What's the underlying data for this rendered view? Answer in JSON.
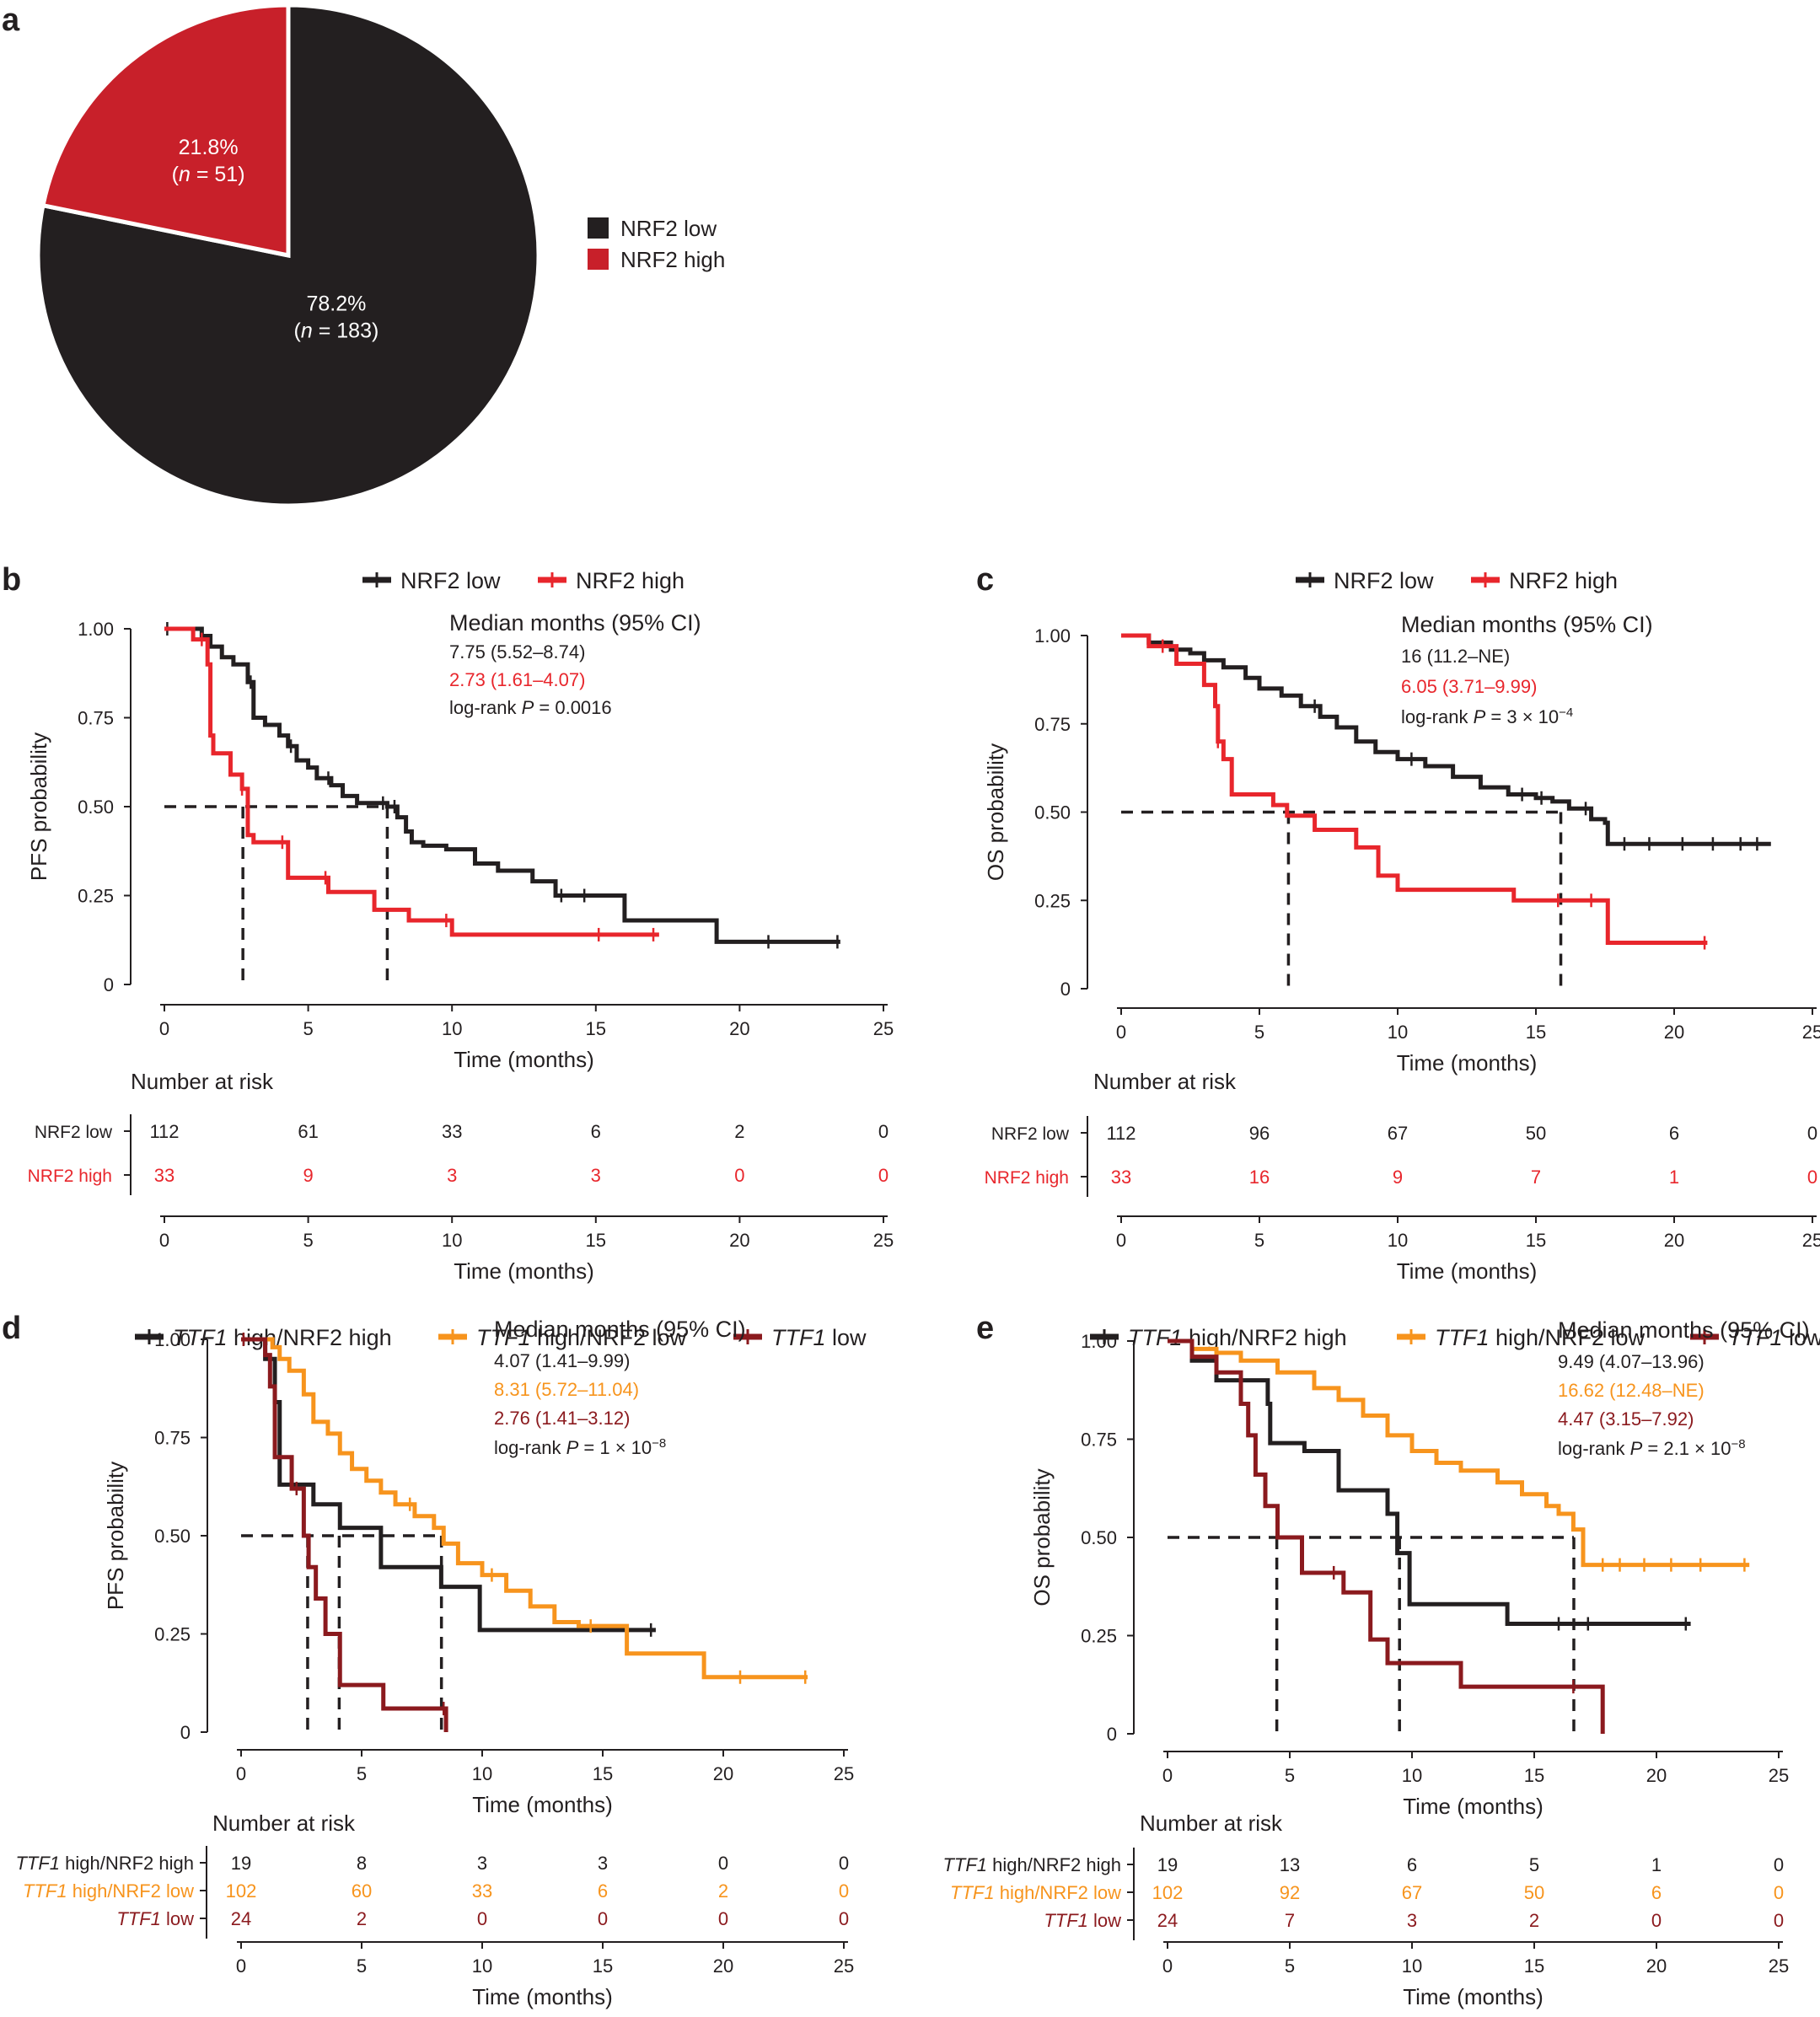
{
  "colors": {
    "black": "#231f20",
    "red_pie": "#c8202a",
    "red": "#e8262c",
    "orange": "#f7941d",
    "darkred": "#8b1a1e"
  },
  "chart_data": [
    {
      "panel": "a",
      "type": "pie",
      "legend_placement": "right",
      "slices": [
        {
          "name": "NRF2 low",
          "percent": 78.2,
          "n": 183,
          "label": "78.2%",
          "n_label": "(n = 183)",
          "color": "#231f20"
        },
        {
          "name": "NRF2 high",
          "percent": 21.8,
          "n": 51,
          "label": "21.8%",
          "n_label": "(n = 51)",
          "color": "#c8202a"
        }
      ]
    },
    {
      "panel": "b",
      "type": "line",
      "ylabel": "PFS probability",
      "xlabel": "Time (months)",
      "xlim": [
        0,
        25
      ],
      "ylim": [
        0,
        1
      ],
      "xticks": [
        "0",
        "5",
        "10",
        "15",
        "20",
        "25"
      ],
      "yticks": [
        "0",
        "0.25",
        "0.50",
        "0.75",
        "1.00"
      ],
      "legend": [
        {
          "name": "NRF2 low",
          "color": "#231f20",
          "italic": false
        },
        {
          "name": "NRF2 high",
          "color": "#e8262c",
          "italic": false
        }
      ],
      "stats": [
        {
          "text": "Median months (95% CI)",
          "color": "#231f20",
          "header": true
        },
        {
          "text": "7.75 (5.52–8.74)",
          "color": "#231f20"
        },
        {
          "text": "2.73 (1.61–4.07)",
          "color": "#e8262c"
        },
        {
          "text": "log-rank P = 0.0016",
          "color": "#231f20"
        }
      ],
      "medians": [
        2.73,
        7.75
      ],
      "series": [
        {
          "name": "NRF2 low",
          "color": "#231f20",
          "x": [
            0,
            1.3,
            1.6,
            2.0,
            2.4,
            2.9,
            3.1,
            3.5,
            4.0,
            4.3,
            4.6,
            5.0,
            5.3,
            5.8,
            6.2,
            6.7,
            7.0,
            7.4,
            7.75,
            8.1,
            8.4,
            8.6,
            9.0,
            9.8,
            10.8,
            11.6,
            12.8,
            13.6,
            16.0,
            19.2,
            23.5
          ],
          "y": [
            1.0,
            0.98,
            0.95,
            0.92,
            0.9,
            0.85,
            0.75,
            0.73,
            0.7,
            0.67,
            0.63,
            0.61,
            0.58,
            0.56,
            0.53,
            0.51,
            0.51,
            0.51,
            0.5,
            0.47,
            0.43,
            0.4,
            0.39,
            0.38,
            0.34,
            0.32,
            0.29,
            0.25,
            0.18,
            0.12,
            0.12
          ],
          "censor_x": [
            0.1,
            3.0,
            4.4,
            5.7,
            7.6,
            8.0,
            13.8,
            14.6,
            21.0,
            23.4
          ]
        },
        {
          "name": "NRF2 high",
          "color": "#e8262c",
          "x": [
            0,
            1.0,
            1.5,
            1.6,
            1.7,
            2.3,
            2.7,
            2.9,
            3.1,
            4.3,
            5.7,
            7.3,
            8.5,
            10.0,
            17.2
          ],
          "y": [
            1.0,
            0.97,
            0.9,
            0.7,
            0.65,
            0.59,
            0.55,
            0.42,
            0.4,
            0.3,
            0.26,
            0.21,
            0.18,
            0.14,
            0.14
          ],
          "censor_x": [
            1.3,
            2.7,
            4.1,
            5.6,
            9.8,
            15.1,
            17.0
          ]
        }
      ],
      "risk_table": {
        "title": "Number at risk",
        "xlabel": "Time (months)",
        "times": [
          "0",
          "5",
          "10",
          "15",
          "20",
          "25"
        ],
        "rows": [
          {
            "name": "NRF2 low",
            "color": "#231f20",
            "values": [
              "112",
              "61",
              "33",
              "6",
              "2",
              "0"
            ]
          },
          {
            "name": "NRF2 high",
            "color": "#e8262c",
            "values": [
              "33",
              "9",
              "3",
              "3",
              "0",
              "0"
            ]
          }
        ]
      }
    },
    {
      "panel": "c",
      "type": "line",
      "ylabel": "OS probability",
      "xlabel": "Time (months)",
      "xlim": [
        0,
        25
      ],
      "ylim": [
        0,
        1
      ],
      "xticks": [
        "0",
        "5",
        "10",
        "15",
        "20",
        "25"
      ],
      "yticks": [
        "0",
        "0.25",
        "0.50",
        "0.75",
        "1.00"
      ],
      "legend": [
        {
          "name": "NRF2 low",
          "color": "#231f20",
          "italic": false
        },
        {
          "name": "NRF2 high",
          "color": "#e8262c",
          "italic": false
        }
      ],
      "stats": [
        {
          "text": "Median months (95% CI)",
          "color": "#231f20",
          "header": true
        },
        {
          "text": "16 (11.2–NE)",
          "color": "#231f20"
        },
        {
          "text": "6.05 (3.71–9.99)",
          "color": "#e8262c"
        },
        {
          "text": "log-rank P = 3 × 10⁻⁴",
          "color": "#231f20"
        }
      ],
      "medians": [
        6.05,
        15.9
      ],
      "series": [
        {
          "name": "NRF2 low",
          "color": "#231f20",
          "x": [
            0,
            1.0,
            1.8,
            2.5,
            3.0,
            3.7,
            4.5,
            5.0,
            5.8,
            6.5,
            7.2,
            7.8,
            8.5,
            9.2,
            10.0,
            11.0,
            12.0,
            13.0,
            14.0,
            15.0,
            15.6,
            16.2,
            17.0,
            17.5,
            17.6,
            23.5
          ],
          "y": [
            1.0,
            0.98,
            0.96,
            0.95,
            0.93,
            0.91,
            0.88,
            0.85,
            0.83,
            0.8,
            0.77,
            0.74,
            0.7,
            0.67,
            0.65,
            0.63,
            0.6,
            0.57,
            0.55,
            0.54,
            0.53,
            0.51,
            0.48,
            0.47,
            0.41,
            0.41
          ],
          "censor_x": [
            7.0,
            10.5,
            14.5,
            15.2,
            16.8,
            18.2,
            19.1,
            20.3,
            21.4,
            22.4,
            23.0
          ]
        },
        {
          "name": "NRF2 high",
          "color": "#e8262c",
          "x": [
            0,
            1.0,
            2.0,
            3.0,
            3.4,
            3.5,
            3.7,
            4.0,
            5.5,
            6.0,
            7.0,
            8.5,
            9.3,
            10.0,
            12.6,
            14.2,
            17.6,
            21.2
          ],
          "y": [
            1.0,
            0.97,
            0.92,
            0.86,
            0.8,
            0.7,
            0.65,
            0.55,
            0.52,
            0.49,
            0.45,
            0.4,
            0.32,
            0.28,
            0.28,
            0.25,
            0.13,
            0.13
          ],
          "censor_x": [
            1.5,
            3.5,
            15.8,
            17.0,
            21.1
          ]
        }
      ],
      "risk_table": {
        "title": "Number at risk",
        "xlabel": "Time (months)",
        "times": [
          "0",
          "5",
          "10",
          "15",
          "20",
          "25"
        ],
        "rows": [
          {
            "name": "NRF2 low",
            "color": "#231f20",
            "values": [
              "112",
              "96",
              "67",
              "50",
              "6",
              "0"
            ]
          },
          {
            "name": "NRF2 high",
            "color": "#e8262c",
            "values": [
              "33",
              "16",
              "9",
              "7",
              "1",
              "0"
            ]
          }
        ]
      }
    },
    {
      "panel": "d",
      "type": "line",
      "ylabel": "PFS probability",
      "xlabel": "Time (months)",
      "xlim": [
        0,
        25
      ],
      "ylim": [
        0,
        1
      ],
      "xticks": [
        "0",
        "5",
        "10",
        "15",
        "20",
        "25"
      ],
      "yticks": [
        "0",
        "0.25",
        "0.50",
        "0.75",
        "1.00"
      ],
      "legend": [
        {
          "name": "TTF1 high/NRF2 high",
          "color": "#231f20",
          "italic": true
        },
        {
          "name": "TTF1 high/NRF2 low",
          "color": "#f7941d",
          "italic": true
        },
        {
          "name": "TTF1 low",
          "color": "#8b1a1e",
          "italic": true
        }
      ],
      "stats": [
        {
          "text": "Median months (95% CI)",
          "color": "#231f20",
          "header": true
        },
        {
          "text": "4.07 (1.41–9.99)",
          "color": "#231f20"
        },
        {
          "text": "8.31 (5.72–11.04)",
          "color": "#f7941d"
        },
        {
          "text": "2.76 (1.41–3.12)",
          "color": "#8b1a1e"
        },
        {
          "text": "log-rank P = 1 × 10⁻⁸",
          "color": "#231f20"
        }
      ],
      "medians": [
        2.76,
        4.07,
        8.31
      ],
      "series": [
        {
          "name": "TTF1 high/NRF2 high",
          "color": "#231f20",
          "x": [
            0,
            1.0,
            1.4,
            1.6,
            3.0,
            4.1,
            5.8,
            8.3,
            9.9,
            17.2
          ],
          "y": [
            1.0,
            0.95,
            0.84,
            0.63,
            0.58,
            0.52,
            0.42,
            0.37,
            0.26,
            0.26
          ],
          "censor_x": [
            17.0
          ]
        },
        {
          "name": "TTF1 high/NRF2 low",
          "color": "#f7941d",
          "x": [
            0,
            1.3,
            1.6,
            2.0,
            2.6,
            3.0,
            3.6,
            4.1,
            4.6,
            5.2,
            5.8,
            6.4,
            7.2,
            8.0,
            8.4,
            9.0,
            10.0,
            11.0,
            12.0,
            13.0,
            14.0,
            16.0,
            19.2,
            23.5
          ],
          "y": [
            1.0,
            0.98,
            0.95,
            0.92,
            0.86,
            0.79,
            0.76,
            0.71,
            0.67,
            0.64,
            0.61,
            0.58,
            0.55,
            0.52,
            0.48,
            0.43,
            0.4,
            0.36,
            0.32,
            0.28,
            0.27,
            0.2,
            0.14,
            0.14
          ],
          "censor_x": [
            7.0,
            10.4,
            14.5,
            20.7,
            23.4
          ]
        },
        {
          "name": "TTF1 low",
          "color": "#8b1a1e",
          "x": [
            0,
            1.0,
            1.2,
            1.4,
            2.1,
            2.6,
            2.8,
            3.1,
            3.5,
            4.1,
            5.9,
            8.5
          ],
          "y": [
            1.0,
            0.96,
            0.88,
            0.7,
            0.62,
            0.5,
            0.42,
            0.34,
            0.25,
            0.12,
            0.06,
            0.0
          ],
          "censor_x": [
            0.1,
            2.3,
            8.4
          ]
        }
      ],
      "risk_table": {
        "title": "Number at risk",
        "xlabel": "Time (months)",
        "times": [
          "0",
          "5",
          "10",
          "15",
          "20",
          "25"
        ],
        "rows": [
          {
            "name": "TTF1 high/NRF2 high",
            "color": "#231f20",
            "values": [
              "19",
              "8",
              "3",
              "3",
              "0",
              "0"
            ]
          },
          {
            "name": "TTF1 high/NRF2 low",
            "color": "#f7941d",
            "values": [
              "102",
              "60",
              "33",
              "6",
              "2",
              "0"
            ]
          },
          {
            "name": "TTF1 low",
            "color": "#8b1a1e",
            "values": [
              "24",
              "2",
              "0",
              "0",
              "0",
              "0"
            ]
          }
        ]
      }
    },
    {
      "panel": "e",
      "type": "line",
      "ylabel": "OS probability",
      "xlabel": "Time (months)",
      "xlim": [
        0,
        25
      ],
      "ylim": [
        0,
        1
      ],
      "xticks": [
        "0",
        "5",
        "10",
        "15",
        "20",
        "25"
      ],
      "yticks": [
        "0",
        "0.25",
        "0.50",
        "0.75",
        "1.00"
      ],
      "legend": [
        {
          "name": "TTF1 high/NRF2 high",
          "color": "#231f20",
          "italic": true
        },
        {
          "name": "TTF1 high/NRF2 low",
          "color": "#f7941d",
          "italic": true
        },
        {
          "name": "TTF1 low",
          "color": "#8b1a1e",
          "italic": true
        }
      ],
      "stats": [
        {
          "text": "Median months (95% CI)",
          "color": "#231f20",
          "header": true
        },
        {
          "text": "9.49 (4.07–13.96)",
          "color": "#231f20"
        },
        {
          "text": "16.62 (12.48–NE)",
          "color": "#f7941d"
        },
        {
          "text": "4.47 (3.15–7.92)",
          "color": "#8b1a1e"
        },
        {
          "text": "log-rank P = 2.1 × 10⁻⁸",
          "color": "#231f20"
        }
      ],
      "medians": [
        4.47,
        9.49,
        16.62
      ],
      "series": [
        {
          "name": "TTF1 high/NRF2 high",
          "color": "#231f20",
          "x": [
            0,
            1.0,
            2.0,
            4.1,
            4.2,
            5.6,
            7.0,
            9.0,
            9.4,
            9.9,
            13.9,
            21.4
          ],
          "y": [
            1.0,
            0.95,
            0.9,
            0.84,
            0.74,
            0.72,
            0.62,
            0.56,
            0.46,
            0.33,
            0.28,
            0.28
          ],
          "censor_x": [
            16.0,
            17.2,
            21.2
          ]
        },
        {
          "name": "TTF1 high/NRF2 low",
          "color": "#f7941d",
          "x": [
            0,
            1.0,
            2.0,
            3.0,
            4.5,
            6.0,
            7.0,
            8.0,
            9.0,
            10.0,
            11.0,
            12.0,
            13.5,
            14.5,
            15.5,
            16.0,
            16.6,
            17.0,
            23.8
          ],
          "y": [
            1.0,
            0.98,
            0.97,
            0.95,
            0.92,
            0.88,
            0.85,
            0.81,
            0.76,
            0.72,
            0.69,
            0.67,
            0.64,
            0.61,
            0.58,
            0.56,
            0.52,
            0.43,
            0.43
          ],
          "censor_x": [
            17.8,
            18.5,
            19.5,
            20.6,
            21.8,
            23.6
          ]
        },
        {
          "name": "TTF1 low",
          "color": "#8b1a1e",
          "x": [
            0,
            1.0,
            2.0,
            3.0,
            3.3,
            3.6,
            4.0,
            4.5,
            5.5,
            7.2,
            8.3,
            9.0,
            10.8,
            12.0,
            17.8,
            17.8
          ],
          "y": [
            1.0,
            0.96,
            0.92,
            0.84,
            0.76,
            0.66,
            0.58,
            0.5,
            0.41,
            0.36,
            0.24,
            0.18,
            0.18,
            0.12,
            0.12,
            0.0
          ],
          "censor_x": [
            6.8,
            16.6
          ]
        }
      ],
      "risk_table": {
        "title": "Number at risk",
        "xlabel": "Time (months)",
        "times": [
          "0",
          "5",
          "10",
          "15",
          "20",
          "25"
        ],
        "rows": [
          {
            "name": "TTF1 high/NRF2 high",
            "color": "#231f20",
            "values": [
              "19",
              "13",
              "6",
              "5",
              "1",
              "0"
            ]
          },
          {
            "name": "TTF1 high/NRF2 low",
            "color": "#f7941d",
            "values": [
              "102",
              "92",
              "67",
              "50",
              "6",
              "0"
            ]
          },
          {
            "name": "TTF1 low",
            "color": "#8b1a1e",
            "values": [
              "24",
              "7",
              "3",
              "2",
              "0",
              "0"
            ]
          }
        ]
      }
    }
  ]
}
